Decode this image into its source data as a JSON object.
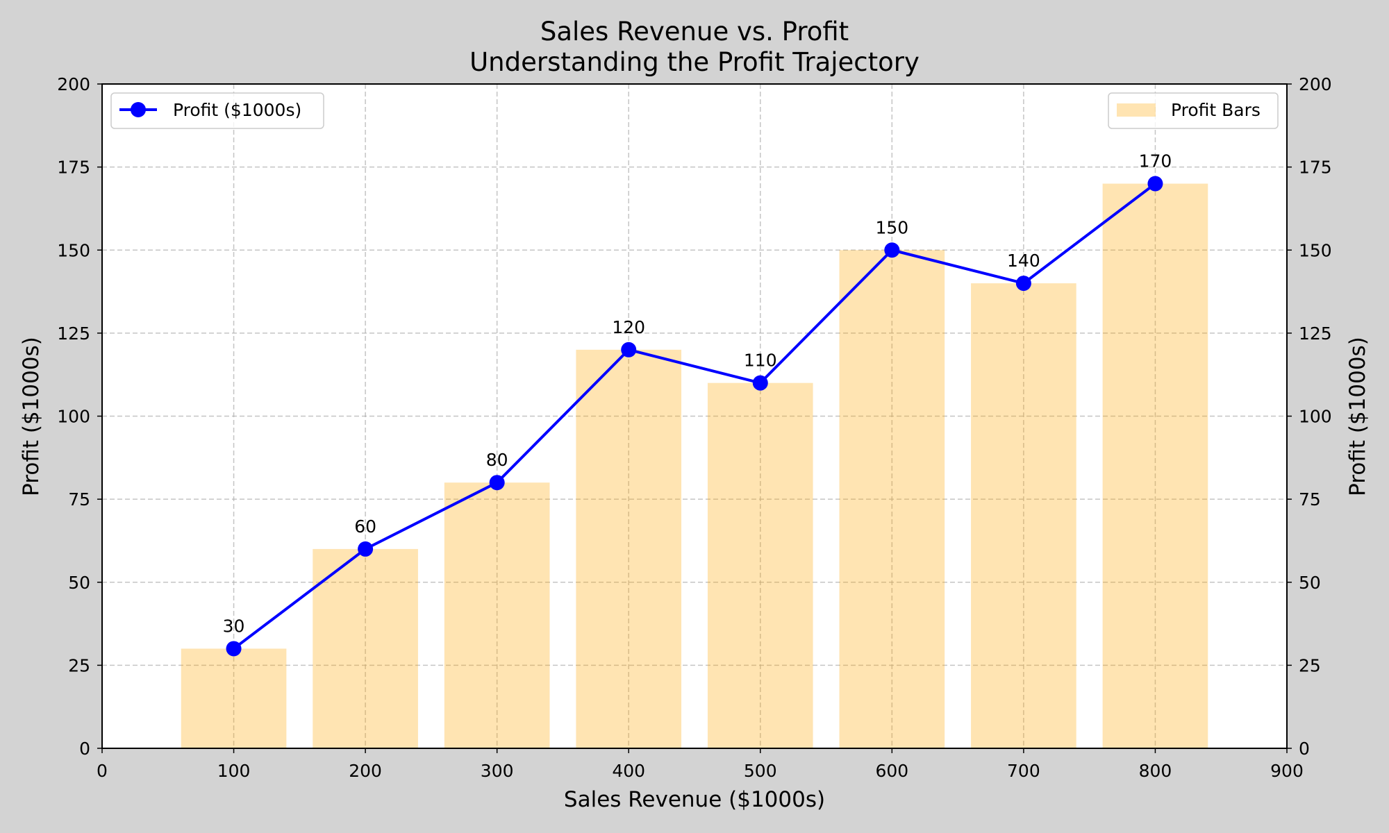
{
  "chart_data": {
    "type": "bar",
    "title": "Sales Revenue vs. Profit",
    "subtitle": "Understanding the Profit Trajectory",
    "xlabel": "Sales Revenue ($1000s)",
    "ylabel": "Profit ($1000s)",
    "ylabel_right": "Profit ($1000s)",
    "xlim": [
      0,
      900
    ],
    "ylim": [
      0,
      200
    ],
    "x_ticks": [
      0,
      100,
      200,
      300,
      400,
      500,
      600,
      700,
      800,
      900
    ],
    "y_ticks": [
      0,
      25,
      50,
      75,
      100,
      125,
      150,
      175,
      200
    ],
    "grid": true,
    "x": [
      100,
      200,
      300,
      400,
      500,
      600,
      700,
      800
    ],
    "series": [
      {
        "name": "Profit ($1000s)",
        "kind": "line",
        "color": "#0000ff",
        "values": [
          30,
          60,
          80,
          120,
          110,
          150,
          140,
          170
        ],
        "legend_position": "upper-left"
      },
      {
        "name": "Profit Bars",
        "kind": "bar",
        "color": "#ffa500",
        "opacity": 0.3,
        "values": [
          30,
          60,
          80,
          120,
          110,
          150,
          140,
          170
        ],
        "legend_position": "upper-right"
      }
    ],
    "data_labels": [
      "30",
      "60",
      "80",
      "120",
      "110",
      "150",
      "140",
      "170"
    ]
  }
}
